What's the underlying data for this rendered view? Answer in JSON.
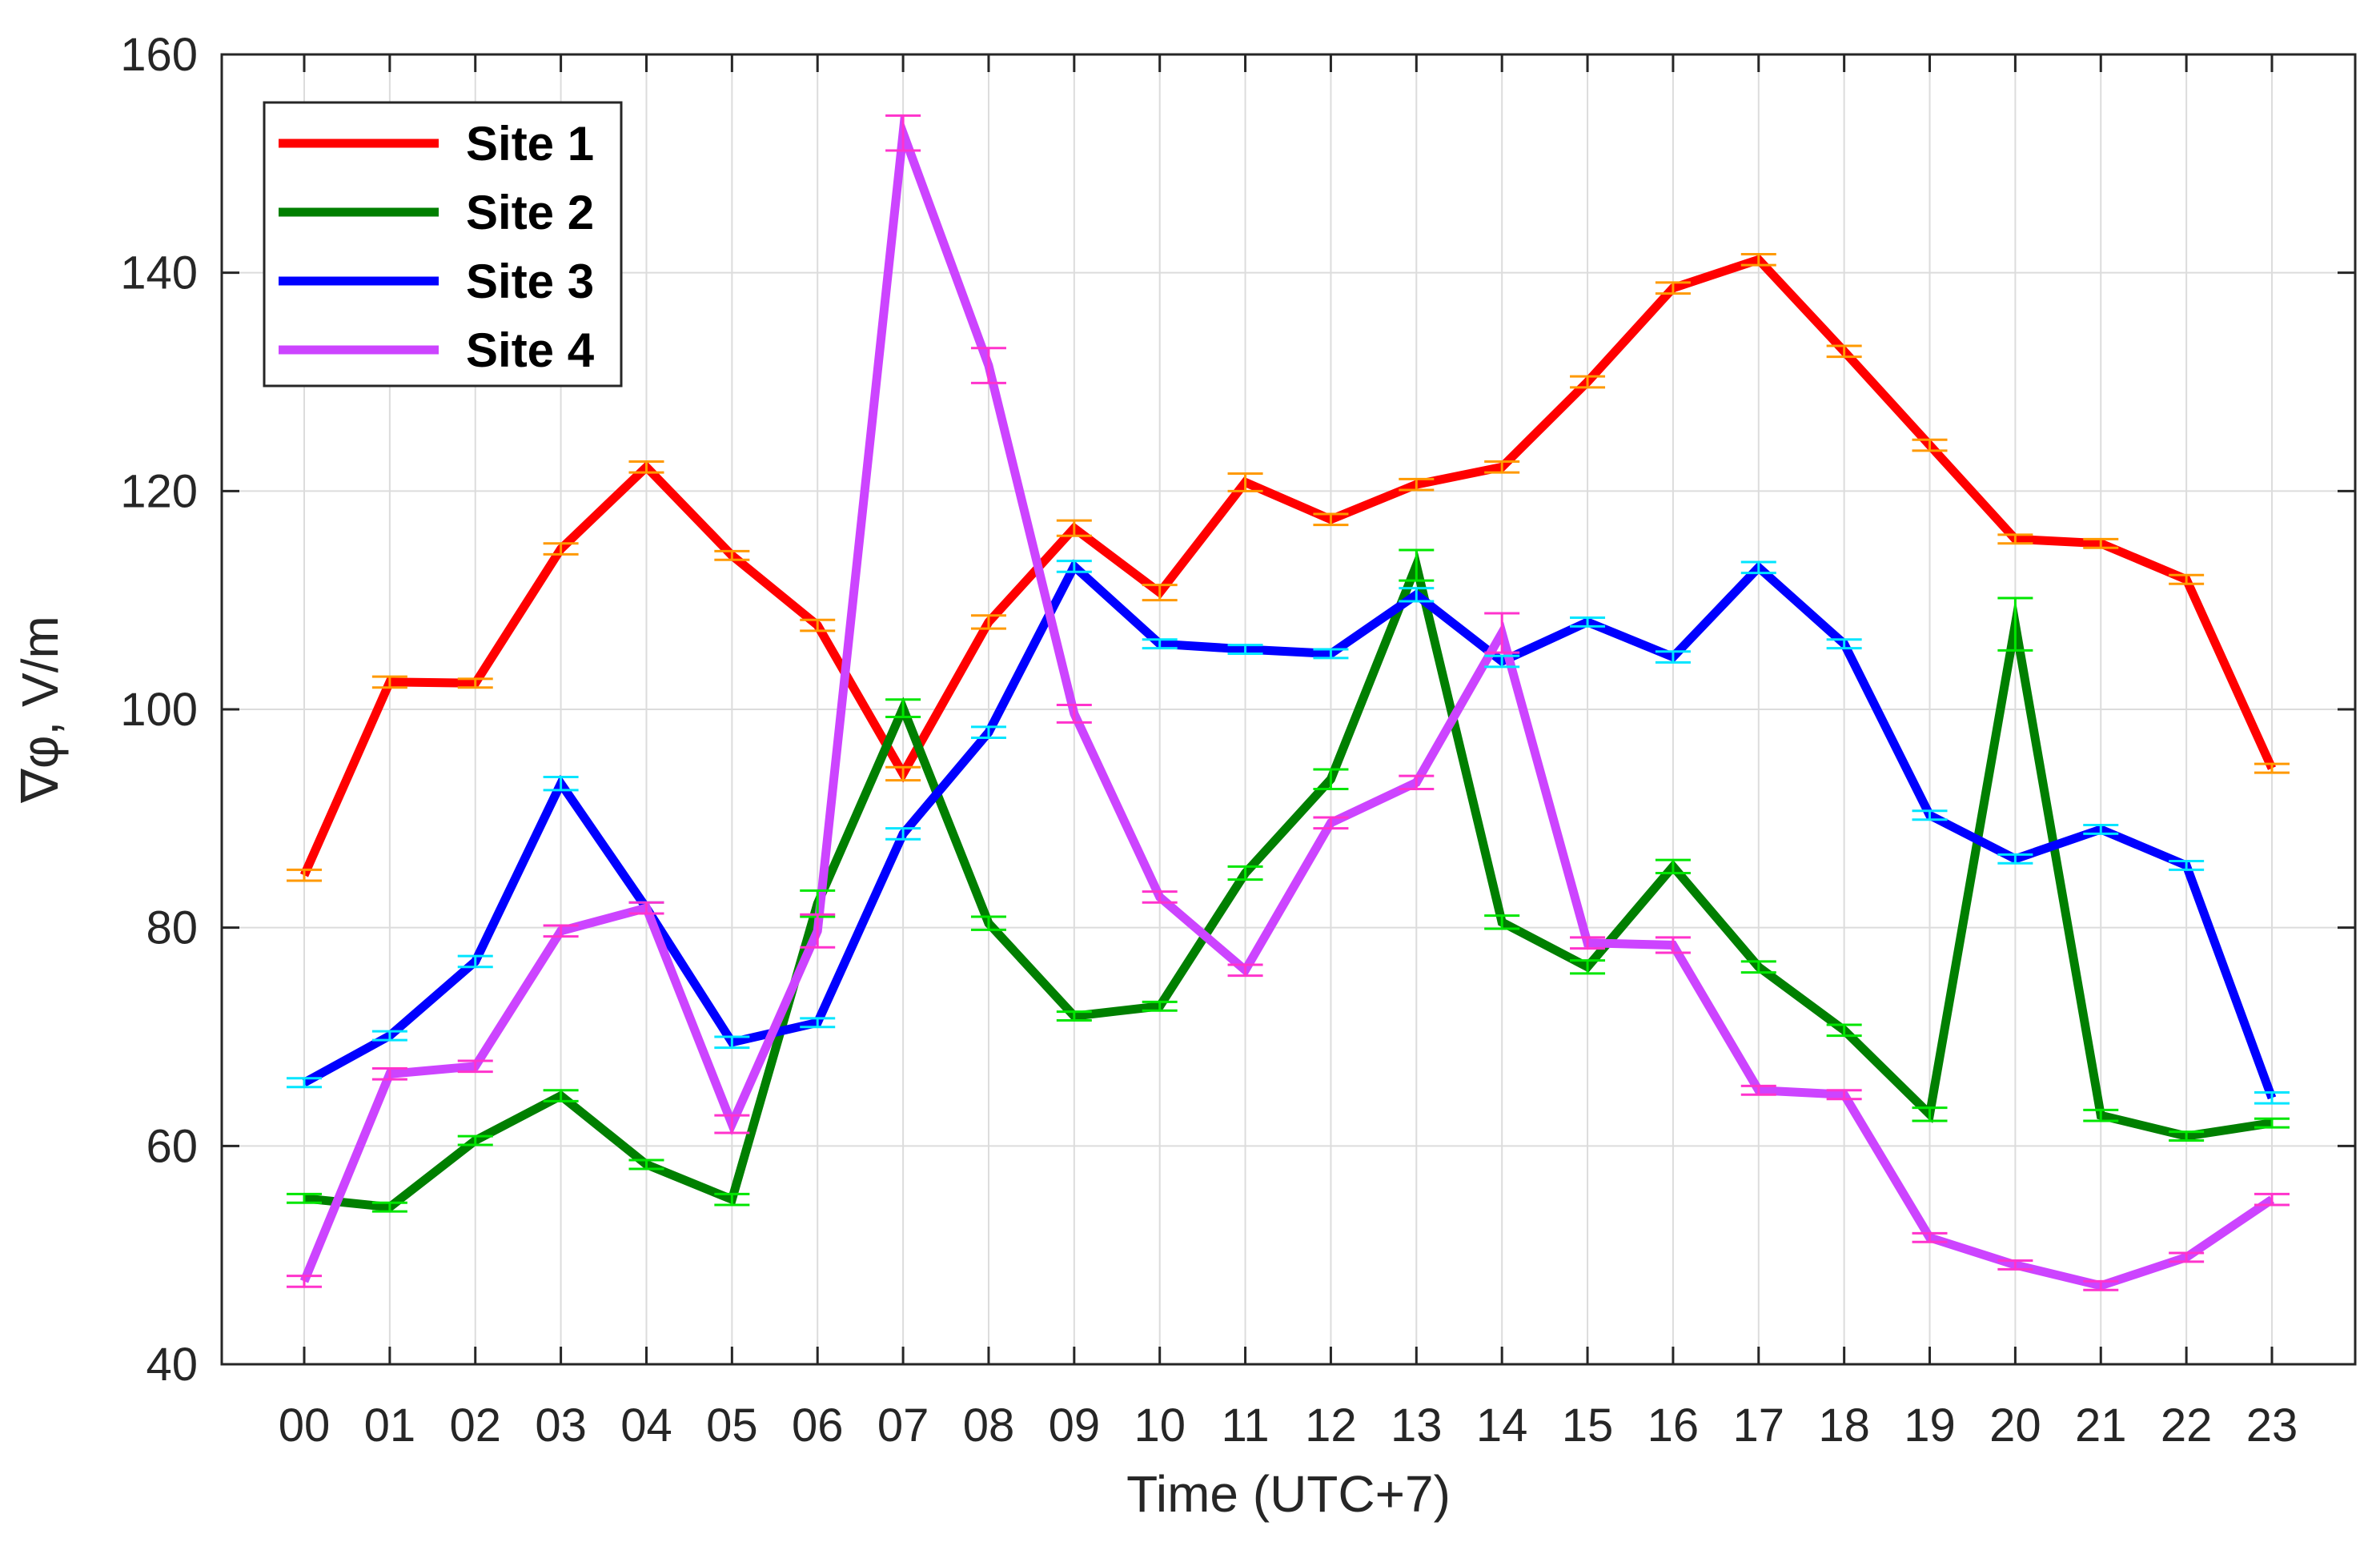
{
  "chart_data": {
    "type": "line",
    "xlabel": "Time (UTC+7)",
    "ylabel": "∇φ, V/m",
    "ylim": [
      40,
      160
    ],
    "yticks": [
      40,
      60,
      80,
      100,
      120,
      140,
      160
    ],
    "categories": [
      "00",
      "01",
      "02",
      "03",
      "04",
      "05",
      "06",
      "07",
      "08",
      "09",
      "10",
      "11",
      "12",
      "13",
      "14",
      "15",
      "16",
      "17",
      "18",
      "19",
      "20",
      "21",
      "22",
      "23"
    ],
    "grid": true,
    "legend_position": "top-left",
    "error_bars": true,
    "series": [
      {
        "name": "Site 1",
        "color": "#ff0000",
        "errorbar_color": "#ff9900",
        "values": [
          84.8,
          102.5,
          102.4,
          114.7,
          122.2,
          114.1,
          107.7,
          94.1,
          108.0,
          116.6,
          110.7,
          120.8,
          117.4,
          120.6,
          122.2,
          130.0,
          138.6,
          141.2,
          132.8,
          124.2,
          115.6,
          115.2,
          111.9,
          94.6
        ],
        "errors": [
          0.5,
          0.5,
          0.4,
          0.5,
          0.5,
          0.4,
          0.5,
          0.6,
          0.6,
          0.7,
          0.7,
          0.8,
          0.5,
          0.5,
          0.5,
          0.5,
          0.5,
          0.5,
          0.5,
          0.5,
          0.4,
          0.4,
          0.4,
          0.4
        ]
      },
      {
        "name": "Site 2",
        "color": "#007f00",
        "errorbar_color": "#00e600",
        "values": [
          55.2,
          54.4,
          60.5,
          64.6,
          58.3,
          55.1,
          82.2,
          100.1,
          80.4,
          71.9,
          72.8,
          85.0,
          93.6,
          113.2,
          80.5,
          76.4,
          85.6,
          76.4,
          70.6,
          62.9,
          107.8,
          62.8,
          60.9,
          62.1
        ],
        "errors": [
          0.4,
          0.4,
          0.4,
          0.5,
          0.4,
          0.5,
          1.2,
          0.8,
          0.6,
          0.4,
          0.4,
          0.6,
          0.9,
          1.4,
          0.6,
          0.6,
          0.6,
          0.5,
          0.5,
          0.6,
          2.4,
          0.5,
          0.4,
          0.4
        ]
      },
      {
        "name": "Site 3",
        "color": "#0000ff",
        "errorbar_color": "#00e5ff",
        "values": [
          65.8,
          70.1,
          76.9,
          93.2,
          81.8,
          69.5,
          71.3,
          88.6,
          97.9,
          113.1,
          106.0,
          105.5,
          105.1,
          110.5,
          104.4,
          108.0,
          104.8,
          113.0,
          106.0,
          90.3,
          86.3,
          89.0,
          85.7,
          64.4
        ],
        "errors": [
          0.4,
          0.4,
          0.5,
          0.6,
          0.5,
          0.5,
          0.4,
          0.5,
          0.5,
          0.5,
          0.4,
          0.4,
          0.4,
          0.6,
          0.5,
          0.4,
          0.5,
          0.5,
          0.4,
          0.4,
          0.4,
          0.4,
          0.4,
          0.5
        ]
      },
      {
        "name": "Site 4",
        "color": "#cc44ff",
        "errorbar_color": "#ff33cc",
        "values": [
          47.6,
          66.6,
          67.3,
          79.7,
          81.8,
          62.0,
          79.7,
          152.8,
          131.5,
          99.6,
          82.8,
          76.1,
          89.6,
          93.3,
          107.0,
          78.6,
          78.4,
          65.1,
          64.7,
          51.6,
          49.1,
          47.2,
          49.8,
          55.1
        ],
        "errors": [
          0.5,
          0.5,
          0.5,
          0.5,
          0.5,
          0.8,
          1.5,
          1.6,
          1.6,
          0.8,
          0.5,
          0.5,
          0.5,
          0.6,
          1.8,
          0.5,
          0.7,
          0.4,
          0.4,
          0.4,
          0.4,
          0.4,
          0.4,
          0.5
        ]
      }
    ]
  }
}
